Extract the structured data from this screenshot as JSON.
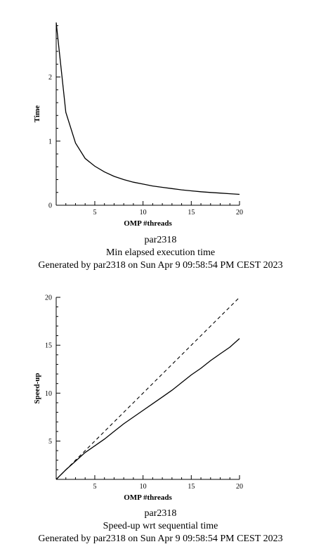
{
  "chart_data": [
    {
      "type": "line",
      "xlabel": "OMP #threads",
      "ylabel": "Time",
      "xlim": [
        1,
        20
      ],
      "ylim": [
        0,
        2.85
      ],
      "xticks": [
        5,
        10,
        15,
        20
      ],
      "yticks": [
        0,
        1,
        2
      ],
      "series": [
        {
          "x": [
            1,
            2,
            3,
            4,
            5,
            6,
            7,
            8,
            9,
            10,
            11,
            12,
            13,
            14,
            15,
            16,
            17,
            18,
            19,
            20
          ],
          "y": [
            2.85,
            1.45,
            0.97,
            0.73,
            0.61,
            0.52,
            0.45,
            0.4,
            0.36,
            0.33,
            0.3,
            0.28,
            0.26,
            0.24,
            0.225,
            0.21,
            0.2,
            0.19,
            0.18,
            0.17
          ],
          "style": "solid"
        }
      ],
      "captions": [
        "par2318",
        "Min elapsed execution time",
        "Generated by par2318 on Sun Apr  9 09:58:54 PM CEST 2023"
      ]
    },
    {
      "type": "line",
      "xlabel": "OMP #threads",
      "ylabel": "Speed-up",
      "xlim": [
        1,
        20
      ],
      "ylim": [
        1,
        20
      ],
      "xticks": [
        5,
        10,
        15,
        20
      ],
      "yticks": [
        5,
        10,
        15,
        20
      ],
      "series": [
        {
          "x": [
            1,
            2,
            3,
            4,
            5,
            6,
            7,
            8,
            9,
            10,
            11,
            12,
            13,
            14,
            15,
            16,
            17,
            18,
            19,
            20
          ],
          "y": [
            1.0,
            2.0,
            2.9,
            3.8,
            4.5,
            5.2,
            6.0,
            6.8,
            7.5,
            8.2,
            8.9,
            9.6,
            10.3,
            11.1,
            11.9,
            12.6,
            13.4,
            14.1,
            14.8,
            15.7
          ],
          "style": "solid"
        },
        {
          "x": [
            1,
            20
          ],
          "y": [
            1,
            20
          ],
          "style": "dashed"
        }
      ],
      "captions": [
        "par2318",
        "Speed-up wrt sequential time",
        "Generated by par2318 on Sun Apr  9 09:58:54 PM CEST 2023"
      ]
    }
  ]
}
